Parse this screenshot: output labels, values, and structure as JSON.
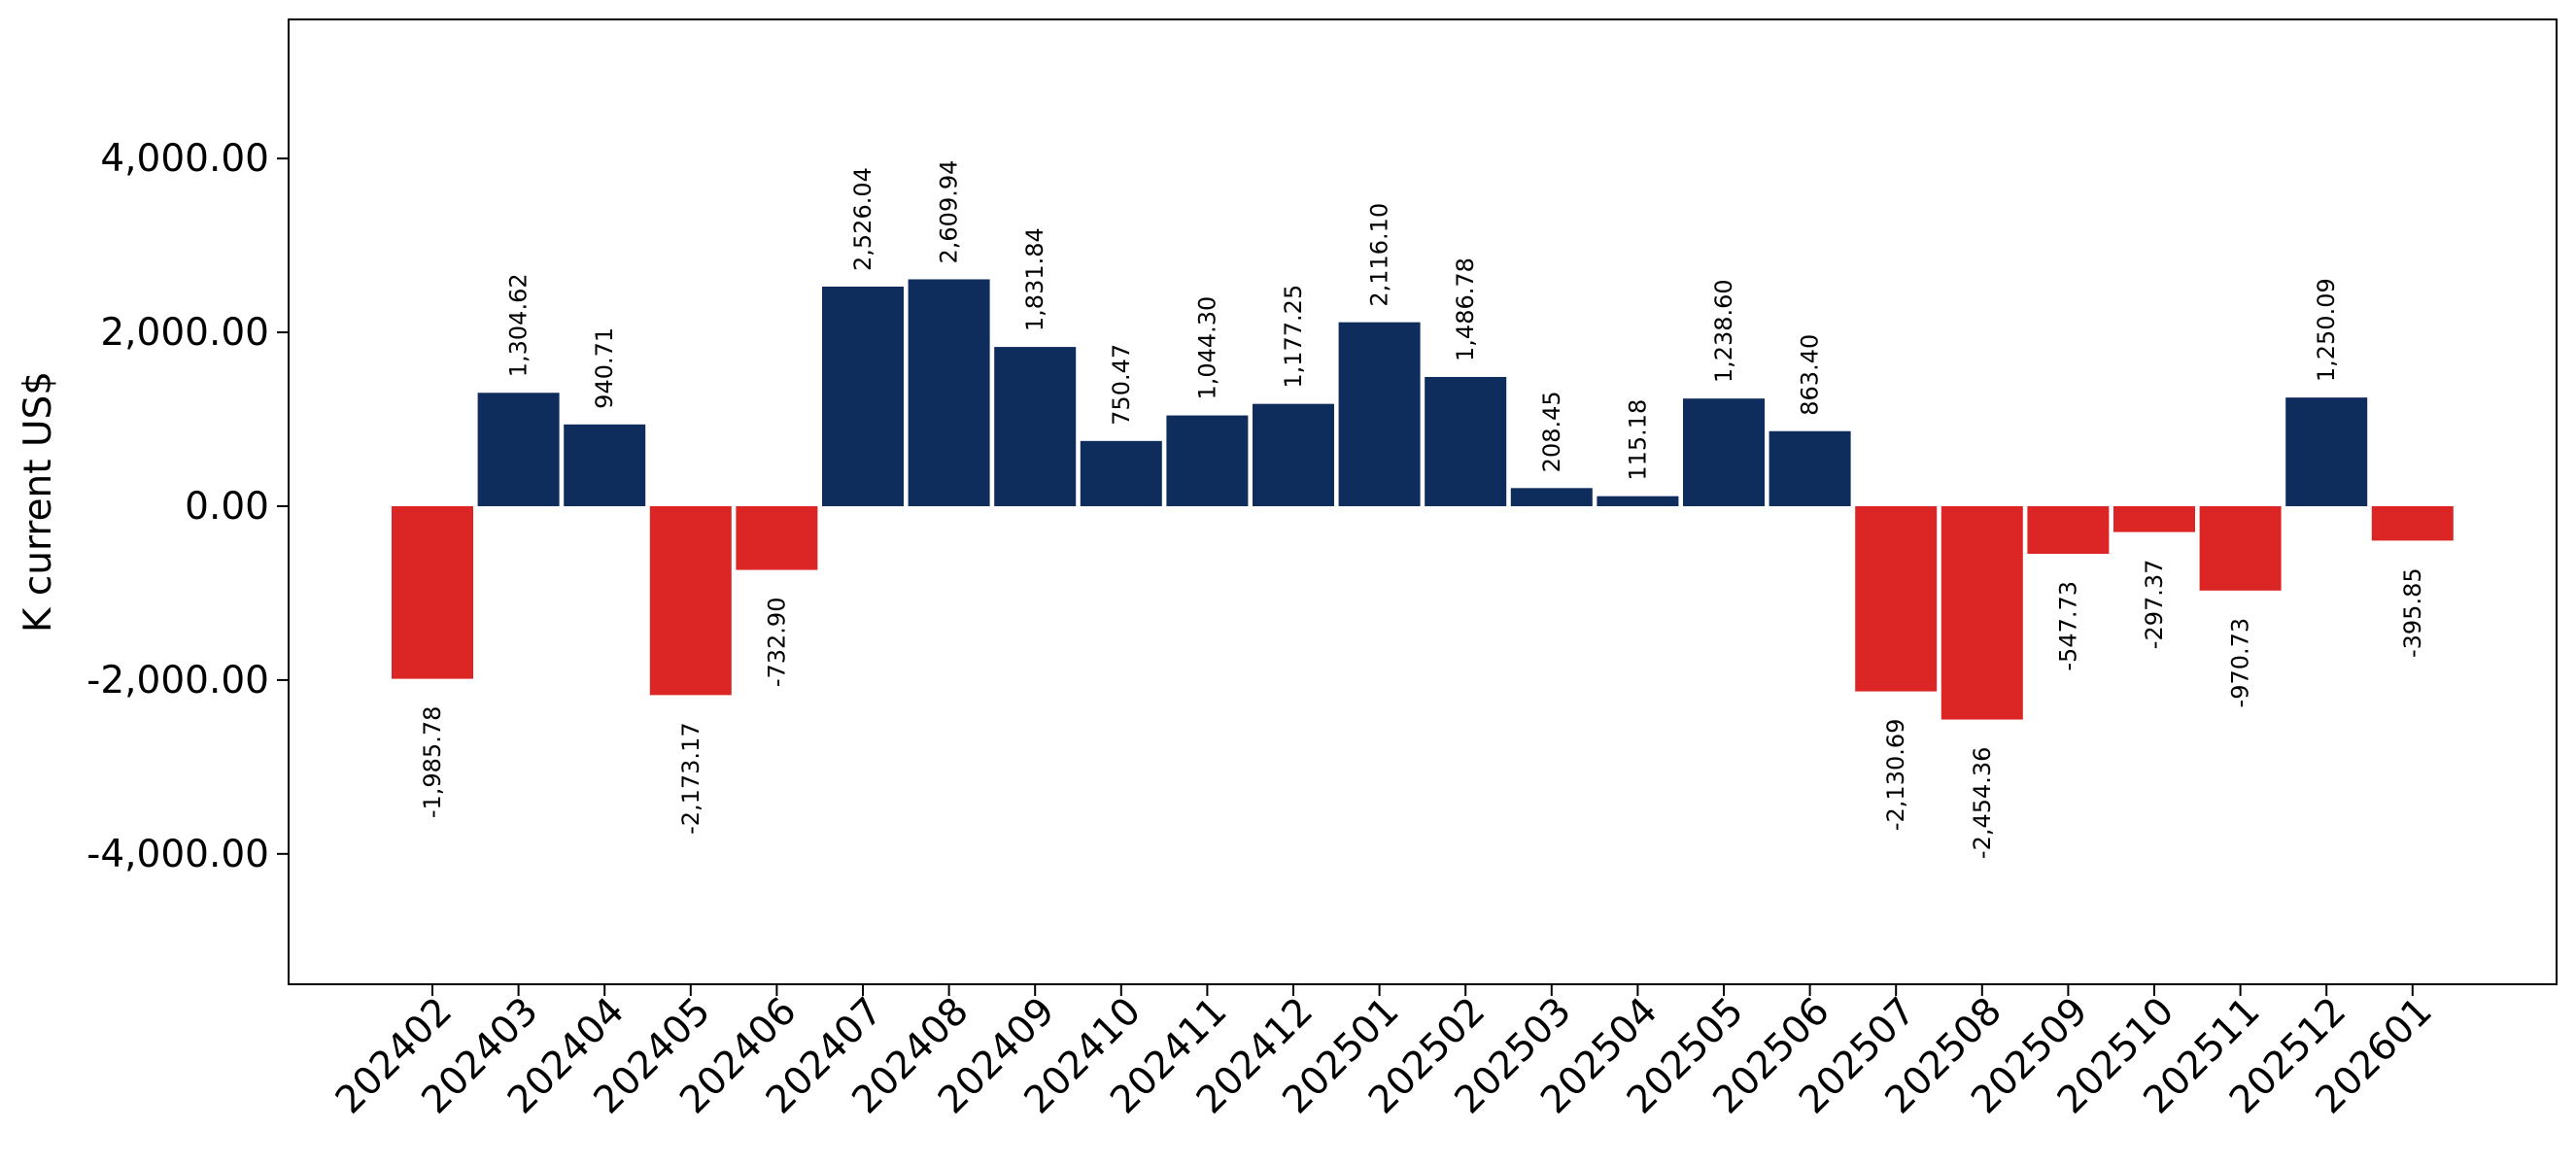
{
  "chart_data": {
    "type": "bar",
    "title": "",
    "xlabel": "",
    "ylabel": "K current US$",
    "ylim": [
      -5500,
      5600
    ],
    "yticks": [
      -4000,
      -2000,
      0,
      2000,
      4000
    ],
    "ytick_labels": [
      "-4,000.00",
      "-2,000.00",
      "0.00",
      "2,000.00",
      "4,000.00"
    ],
    "grid": false,
    "legend": "none",
    "colors": {
      "positive": "#0e2c5c",
      "negative": "#dc2626"
    },
    "categories": [
      "202402",
      "202403",
      "202404",
      "202405",
      "202406",
      "202407",
      "202408",
      "202409",
      "202410",
      "202411",
      "202412",
      "202501",
      "202502",
      "202503",
      "202504",
      "202505",
      "202506",
      "202507",
      "202508",
      "202509",
      "202510",
      "202511",
      "202512",
      "202601"
    ],
    "values": [
      -1985.78,
      1304.62,
      940.71,
      -2173.17,
      -732.9,
      2526.04,
      2609.94,
      1831.84,
      750.47,
      1044.3,
      1177.25,
      2116.1,
      1486.78,
      208.45,
      115.18,
      1238.6,
      863.4,
      -2130.69,
      -2454.36,
      -547.73,
      -297.37,
      -970.73,
      1250.09,
      -395.85
    ],
    "data_labels": [
      "-1,985.78",
      "1,304.62",
      "940.71",
      "-2,173.17",
      "-732.90",
      "2,526.04",
      "2,609.94",
      "1,831.84",
      "750.47",
      "1,044.30",
      "1,177.25",
      "2,116.10",
      "1,486.78",
      "208.45",
      "115.18",
      "1,238.60",
      "863.40",
      "-2,130.69",
      "-2,454.36",
      "-547.73",
      "-297.37",
      "-970.73",
      "1,250.09",
      "-395.85"
    ]
  }
}
